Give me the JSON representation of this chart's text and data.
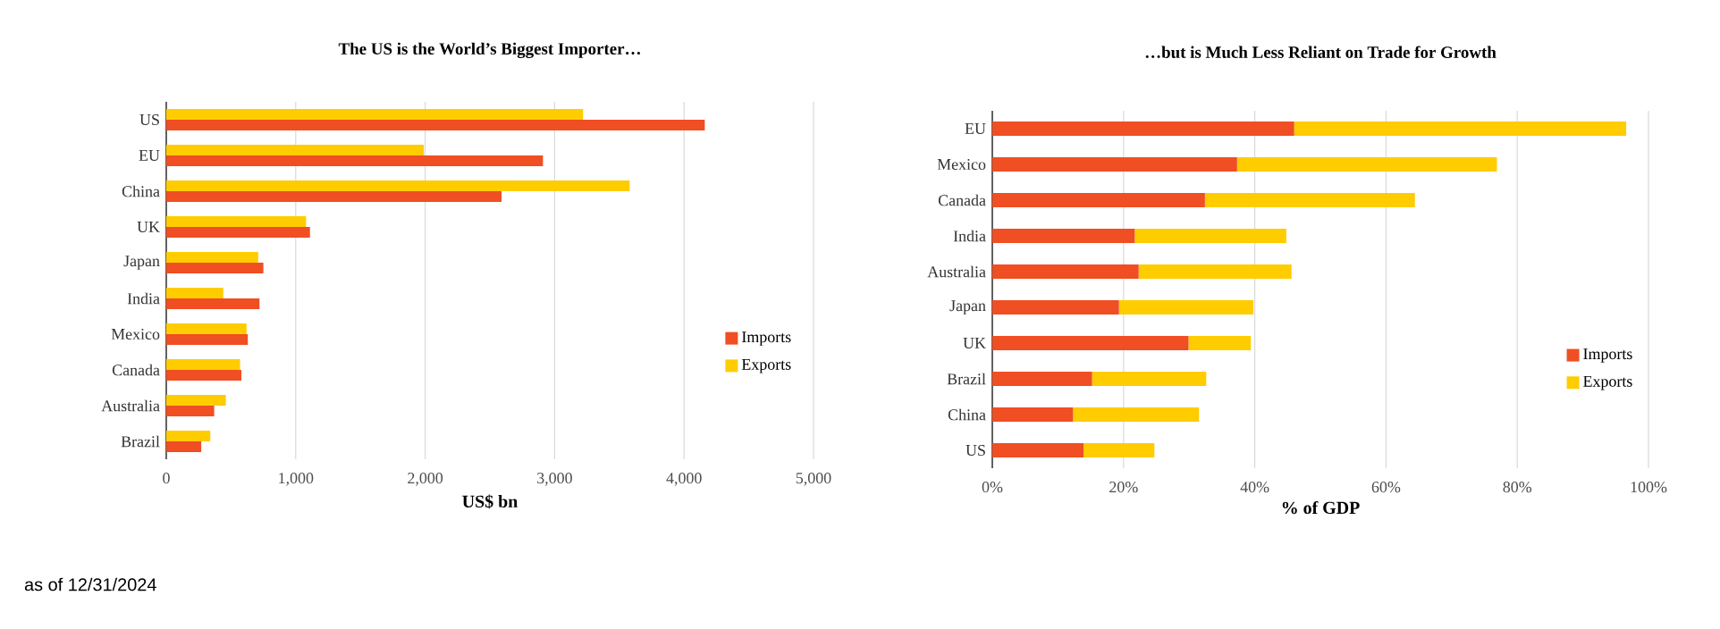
{
  "chart_data": [
    {
      "type": "bar",
      "orientation": "horizontal",
      "title": "The US is the World’s Biggest Importer…",
      "xlabel": "US$ bn",
      "categories": [
        "US",
        "EU",
        "China",
        "UK",
        "Japan",
        "India",
        "Mexico",
        "Canada",
        "Australia",
        "Brazil"
      ],
      "series": [
        {
          "name": "Imports",
          "color": "#f04e23",
          "values": [
            4160,
            2910,
            2590,
            1110,
            750,
            720,
            630,
            580,
            370,
            270
          ]
        },
        {
          "name": "Exports",
          "color": "#ffcc00",
          "values": [
            3220,
            1990,
            3580,
            1080,
            710,
            440,
            620,
            570,
            460,
            340
          ]
        }
      ],
      "xlim": [
        0,
        5000
      ],
      "xticks": [
        0,
        {
          "value": 1000,
          "label": "1,000"
        },
        {
          "value": 2000,
          "label": "2,000"
        },
        {
          "value": 3000,
          "label": "3,000"
        },
        {
          "value": 4000,
          "label": "4,000"
        },
        {
          "value": 5000,
          "label": "5,000"
        }
      ],
      "grid": "x",
      "legend": "right",
      "annotations": [
        "as of 12/31/2024"
      ]
    },
    {
      "type": "bar",
      "orientation": "horizontal",
      "stacked": true,
      "title": "…but is Much Less Reliant on Trade for Growth",
      "xlabel": "% of GDP",
      "categories": [
        "EU",
        "Mexico",
        "Canada",
        "India",
        "Australia",
        "Japan",
        "UK",
        "Brazil",
        "China",
        "US"
      ],
      "series": [
        {
          "name": "Imports",
          "color": "#f04e23",
          "values": [
            46.0,
            37.3,
            32.4,
            21.7,
            22.3,
            19.3,
            29.9,
            15.2,
            12.3,
            13.9
          ]
        },
        {
          "name": "Exports",
          "color": "#ffcc00",
          "values": [
            50.6,
            39.6,
            32.0,
            23.1,
            23.3,
            20.5,
            9.5,
            17.4,
            19.2,
            10.8
          ]
        }
      ],
      "xlim": [
        0,
        100
      ],
      "xticks": [
        {
          "value": 0,
          "label": "0%"
        },
        {
          "value": 20,
          "label": "20%"
        },
        {
          "value": 40,
          "label": "40%"
        },
        {
          "value": 60,
          "label": "60%"
        },
        {
          "value": 80,
          "label": "80%"
        },
        {
          "value": 100,
          "label": "100%"
        }
      ],
      "grid": "x",
      "legend": "bottom right"
    }
  ]
}
